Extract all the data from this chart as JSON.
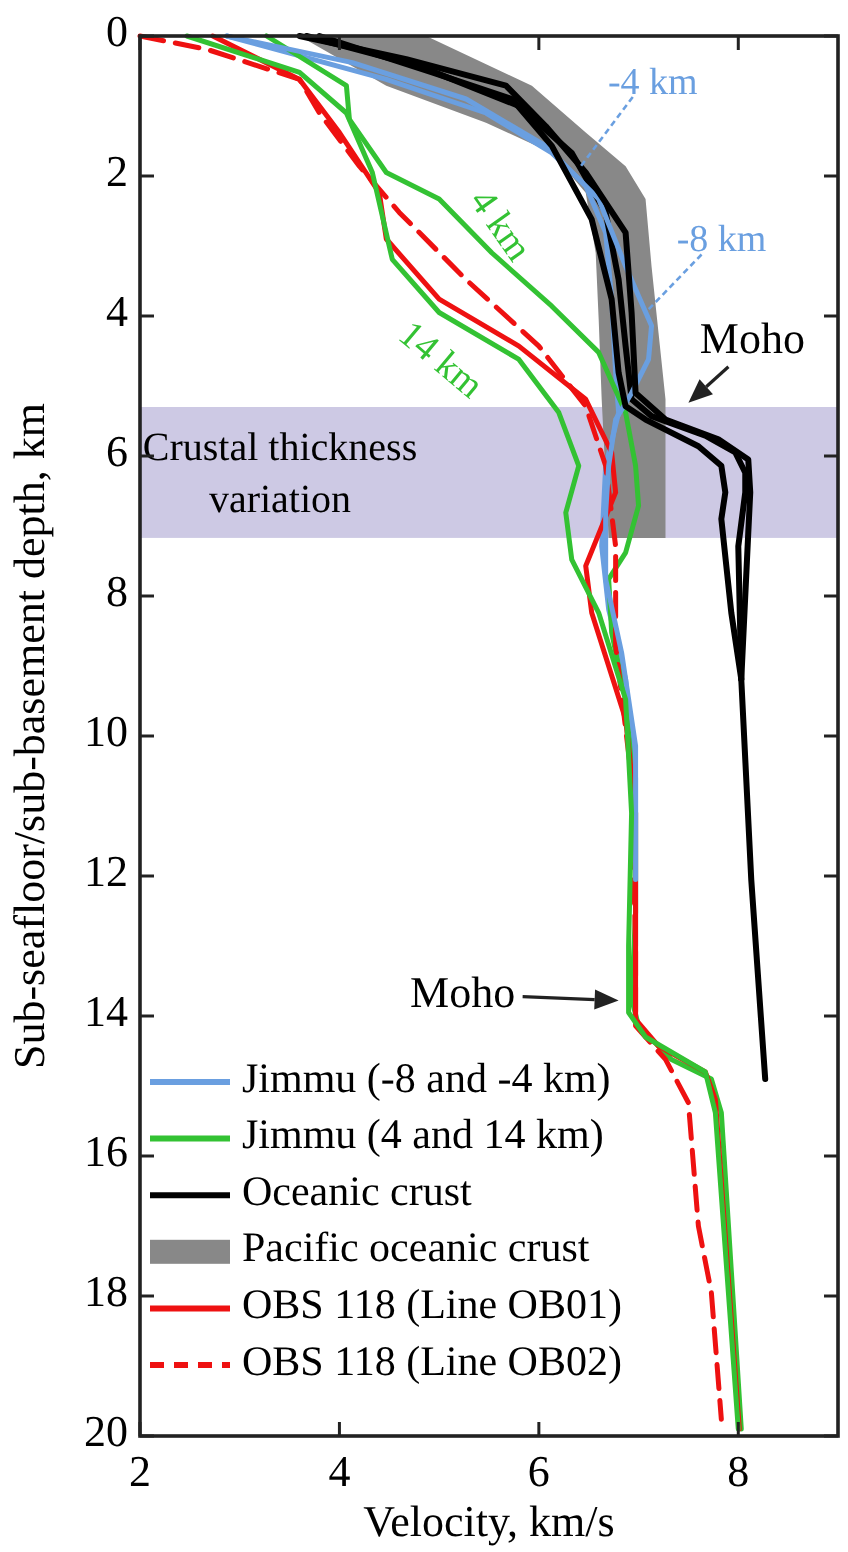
{
  "chart_data": {
    "type": "line",
    "xlabel": "Velocity, km/s",
    "ylabel": "Sub-seafloor/sub-basement depth, km",
    "xlim": [
      2,
      9
    ],
    "ylim": [
      20,
      0
    ],
    "xticks": [
      2,
      4,
      6,
      8
    ],
    "yticks": [
      0,
      2,
      4,
      6,
      8,
      10,
      12,
      14,
      16,
      18,
      20
    ],
    "grid": false,
    "legend": "bottom left",
    "bands": [
      {
        "axis": "y",
        "from": 5.3,
        "to": 7.17,
        "label": "Crustal thickness variation",
        "color": "#cdc9e4"
      }
    ],
    "series": [
      {
        "name": "Jimmu (-8 and -4 km)",
        "color": "#6a9fe0",
        "x": [
          2.87,
          4.47,
          5.47,
          6.13,
          6.47,
          6.67,
          6.73,
          6.77,
          6.8,
          6.67,
          6.63,
          6.7,
          6.87,
          6.97,
          6.97,
          6.97
        ],
        "values": [
          0,
          0.62,
          1.1,
          1.67,
          2.14,
          2.81,
          3.76,
          4.81,
          5.38,
          6.14,
          7.29,
          8.19,
          9.19,
          10.6,
          12.05,
          13.0
        ]
      },
      {
        "name": "Jimmu (4 and 14 km)",
        "color": "#33c233",
        "x": [
          3.27,
          4.07,
          4.1,
          4.47,
          5.0,
          5.53,
          6.13,
          6.6,
          6.87,
          6.97,
          7.0,
          6.87,
          6.7,
          6.73,
          6.87,
          6.97,
          6.97,
          6.93,
          7.0,
          7.33,
          7.73,
          7.83,
          8.03
        ],
        "values": [
          0,
          0.71,
          1.19,
          1.95,
          2.33,
          3.1,
          3.86,
          4.52,
          5.38,
          6.14,
          6.71,
          7.38,
          7.76,
          8.52,
          9.48,
          11.1,
          12.52,
          13.76,
          14.14,
          14.62,
          14.9,
          15.38,
          19.9
        ]
      },
      {
        "name": "Oceanic crust",
        "color": "#000000",
        "x": [
          3.67,
          4.8,
          5.8,
          6.33,
          6.67,
          6.8,
          6.87,
          6.93,
          7.13,
          7.67,
          7.97,
          8.07,
          8.07,
          8.0,
          8.03,
          8.13,
          8.27
        ],
        "values": [
          0,
          0.43,
          1.0,
          1.67,
          2.52,
          3.48,
          4.43,
          5.19,
          5.43,
          5.71,
          5.95,
          6.24,
          6.52,
          7.29,
          9.19,
          12.05,
          14.9
        ]
      },
      {
        "name": "Pacific oceanic crust",
        "type": "area",
        "color": "#888888",
        "x": [
          3.6,
          4.47,
          5.47,
          6.13,
          6.47,
          6.57,
          6.6,
          6.63,
          6.7,
          7.27,
          7.27,
          7.2,
          7.13,
          7.07,
          6.87,
          6.47,
          5.93,
          4.87
        ],
        "values": [
          0,
          0.71,
          1.24,
          1.67,
          2.24,
          3.1,
          4.05,
          5.19,
          7.17,
          7.17,
          5.19,
          4.24,
          3.29,
          2.33,
          1.86,
          1.38,
          0.71,
          0
        ]
      },
      {
        "name": "OBS 118 (Line OB01)",
        "color": "#ee1111",
        "x": [
          2.73,
          3.6,
          4.0,
          4.4,
          4.47,
          5.0,
          5.8,
          6.47,
          6.73,
          6.77,
          6.47,
          6.53,
          6.87,
          6.97,
          6.97,
          6.97,
          7.2,
          7.67,
          7.77,
          8.01
        ],
        "values": [
          0,
          0.62,
          1.38,
          2.24,
          2.9,
          3.76,
          4.43,
          5.19,
          5.95,
          6.52,
          7.57,
          8.24,
          9.76,
          11.1,
          13.0,
          14.05,
          14.43,
          14.8,
          15.19,
          19.9
        ]
      },
      {
        "name": "OBS 118 (Line OB02)",
        "color": "#ee1111",
        "line_style": "dashed",
        "x": [
          2.0,
          2.67,
          3.6,
          3.8,
          4.2,
          4.6,
          5.27,
          6.0,
          6.47,
          6.67,
          6.77,
          6.77,
          6.93,
          6.97,
          6.97,
          7.27,
          7.5,
          7.6,
          7.73,
          7.83
        ],
        "values": [
          0,
          0.19,
          0.62,
          1.1,
          1.86,
          2.52,
          3.48,
          4.43,
          5.29,
          6.14,
          7.29,
          8.71,
          10.6,
          13.0,
          14.14,
          14.62,
          15.24,
          17.0,
          17.95,
          19.76
        ]
      },
      {
        "color": "#6a9fe0",
        "x": [
          2.87,
          4.13,
          5.27,
          6.07,
          6.6,
          6.87,
          7.13,
          7.1,
          6.93,
          6.77,
          6.7,
          6.67,
          6.67,
          6.83,
          6.97,
          6.97
        ],
        "values": [
          0,
          0.38,
          0.9,
          1.57,
          2.33,
          3.29,
          4.14,
          4.62,
          5.1,
          5.48,
          6.14,
          6.81,
          7.76,
          8.81,
          10.14,
          12.05
        ]
      },
      {
        "color": "#33c233",
        "x": [
          2.47,
          3.6,
          4.07,
          4.33,
          4.53,
          5.0,
          5.8,
          6.2,
          6.4,
          6.27,
          6.33,
          6.6,
          6.87,
          6.93,
          6.9,
          6.9,
          7.07,
          7.67,
          7.77,
          8.0
        ],
        "values": [
          0,
          0.52,
          1.1,
          1.95,
          3.19,
          3.95,
          4.62,
          5.38,
          6.14,
          6.81,
          7.48,
          8.24,
          9.48,
          11.1,
          13.0,
          13.95,
          14.3,
          14.8,
          15.38,
          19.9
        ]
      },
      {
        "color": "#000000",
        "x": [
          3.8,
          4.93,
          5.73,
          6.13,
          6.53,
          6.73,
          6.8,
          6.87,
          7.07,
          7.6,
          7.83,
          7.87,
          7.83,
          7.93,
          8.03
        ],
        "values": [
          0,
          0.52,
          0.9,
          1.57,
          2.62,
          3.76,
          4.81,
          5.29,
          5.48,
          5.86,
          6.14,
          6.52,
          6.9,
          8.24,
          9.19
        ]
      },
      {
        "color": "#000000",
        "x": [
          3.6,
          4.67,
          5.67,
          6.07,
          6.47,
          6.87,
          6.93,
          6.97,
          7.27,
          7.8,
          8.1,
          8.12,
          8.1,
          8.03
        ],
        "values": [
          0,
          0.33,
          0.71,
          1.29,
          1.95,
          2.81,
          3.95,
          5.1,
          5.48,
          5.76,
          6.05,
          6.52,
          7.1,
          9.19
        ]
      }
    ],
    "annotations": [
      {
        "text": "-4 km",
        "x": 6.4,
        "y": 1.9
      },
      {
        "text": "-8 km",
        "x": 7.07,
        "y": 3.95
      },
      {
        "text": "4 km",
        "x": 5.39,
        "y": 2.9
      },
      {
        "text": "14 km",
        "x": 5.58,
        "y": 4.43
      },
      {
        "text": "Moho",
        "x": 7.5,
        "y": 5.24
      },
      {
        "text": "Moho",
        "x": 6.8,
        "y": 13.78
      }
    ]
  }
}
